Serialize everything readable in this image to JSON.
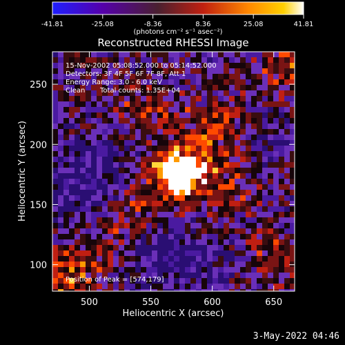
{
  "chart_data": {
    "type": "heatmap",
    "title": "Reconstructed RHESSI Image",
    "xlabel": "Heliocentric X (arcsec)",
    "ylabel": "Heliocentric Y (arcsec)",
    "xlim": [
      470,
      667
    ],
    "ylim": [
      78,
      277
    ],
    "x_ticks": [
      500,
      550,
      600,
      650
    ],
    "y_ticks": [
      100,
      150,
      200,
      250
    ],
    "colorbar": {
      "min": -41.81,
      "max": 41.81,
      "tick_labels": [
        "-41.81",
        "-25.08",
        "-8.36",
        "8.36",
        "25.08",
        "41.81"
      ],
      "unit_label": "(photons cm⁻² s⁻¹ asec⁻²)",
      "colors": [
        "#1f1fff",
        "#5500aa",
        "#992a2a",
        "#ff4a00",
        "#ffb000",
        "#ffffff"
      ]
    },
    "annotations": {
      "time": "15-Nov-2002 05:08:52.000 to 05:14:52.000",
      "detectors": "Detectors: 3F 4F 5F 6F 7F 8F, Att 1",
      "energy": "Energy Range: 3.0 - 6.0 keV",
      "algorithm": "Clean",
      "counts": "Total counts: 1.35E+04",
      "peak": "Position of Peak = [574,179]"
    },
    "peak": [
      574,
      179
    ],
    "grid": false,
    "legend": "none"
  },
  "footer_date": "3-May-2022 04:46",
  "render_colors": {
    "background": "#000000",
    "foreground": "#ffffff",
    "low": "#5d27a8",
    "dark": "#120605",
    "mid": "#b5241c",
    "high": "#ff7a00",
    "peak": "#ffffff"
  }
}
